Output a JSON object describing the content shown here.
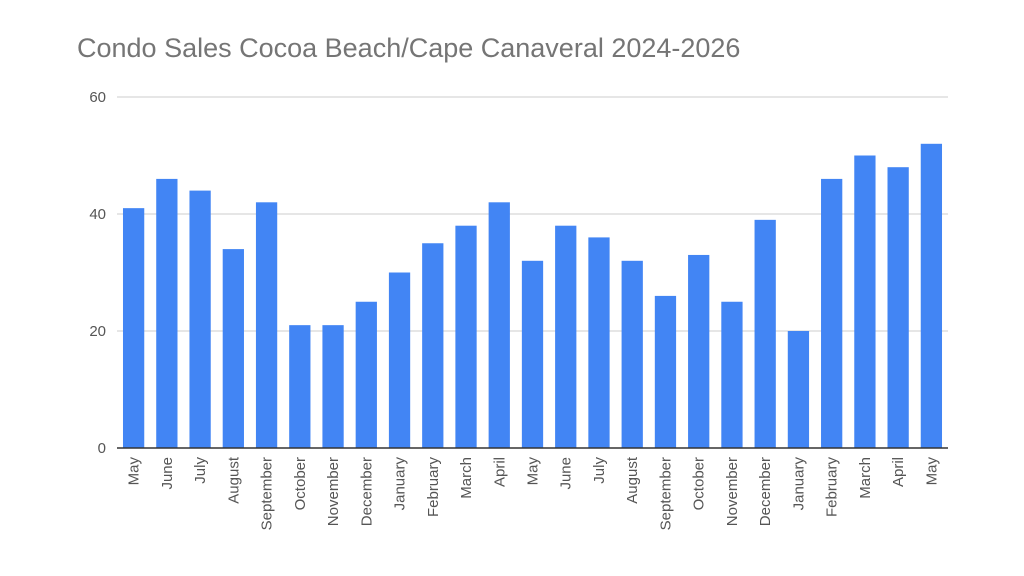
{
  "chart_data": {
    "type": "bar",
    "title": "Condo Sales Cocoa Beach/Cape Canaveral 2024-2026",
    "xlabel": "",
    "ylabel": "",
    "ylim": [
      0,
      60
    ],
    "yticks": [
      0,
      20,
      40,
      60
    ],
    "grid": true,
    "bar_color": "#4285f4",
    "categories": [
      "May",
      "June",
      "July",
      "August",
      "September",
      "October",
      "November",
      "December",
      "January",
      "February",
      "March",
      "April",
      "May",
      "June",
      "July",
      "August",
      "September",
      "October",
      "November",
      "December",
      "January",
      "February",
      "March",
      "April",
      "May"
    ],
    "values": [
      41,
      46,
      44,
      34,
      42,
      21,
      21,
      25,
      30,
      35,
      38,
      42,
      32,
      38,
      36,
      32,
      26,
      33,
      25,
      39,
      20,
      46,
      50,
      48,
      52
    ]
  }
}
